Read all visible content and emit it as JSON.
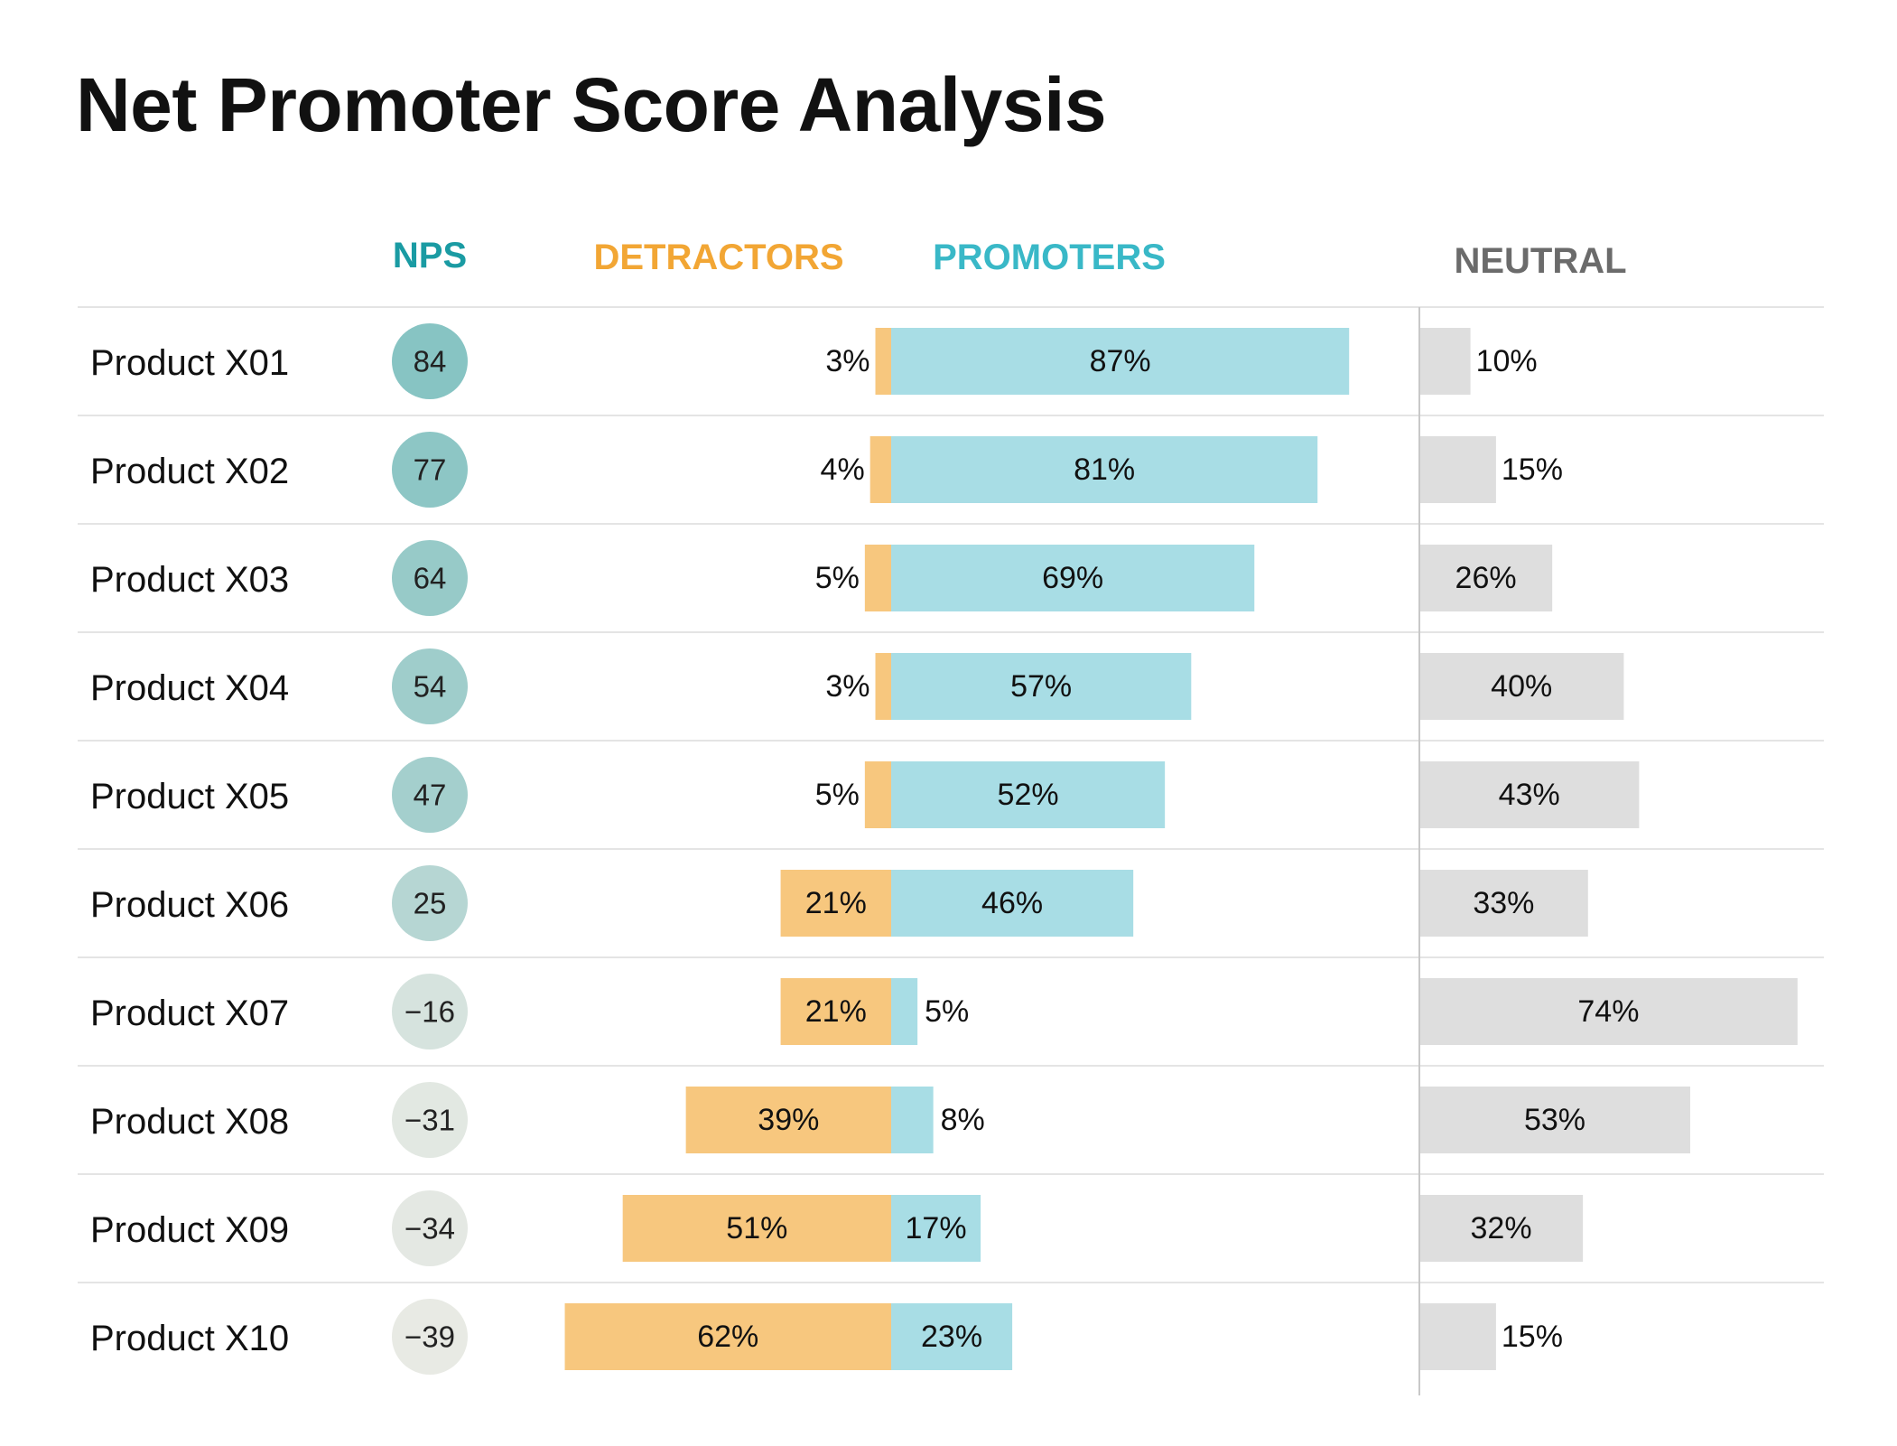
{
  "title": "Net Promoter Score Analysis",
  "colors": {
    "nps_header": "#1a9ba3",
    "detractors": "#f7c77e",
    "detractors_header": "#f2a634",
    "promoters": "#a8dde5",
    "promoters_header": "#39b8c7",
    "neutral": "#dedede",
    "neutral_header": "#6b6b6b",
    "divider": "#e4e4e4"
  },
  "chart_data": {
    "type": "bar",
    "subtype": "diverging-stacked",
    "headers": {
      "nps": "NPS",
      "detractors": "DETRACTORS",
      "promoters": "PROMOTERS",
      "neutral": "NEUTRAL"
    },
    "categories": [
      "Product X01",
      "Product X02",
      "Product X03",
      "Product X04",
      "Product X05",
      "Product X06",
      "Product X07",
      "Product X08",
      "Product X09",
      "Product X10"
    ],
    "nps": [
      84,
      77,
      64,
      54,
      47,
      25,
      -16,
      -31,
      -34,
      -39
    ],
    "nps_labels": [
      "84",
      "77",
      "64",
      "54",
      "47",
      "25",
      "−16",
      "−31",
      "−34",
      "−39"
    ],
    "series": [
      {
        "name": "DETRACTORS",
        "values": [
          3,
          4,
          5,
          3,
          5,
          21,
          21,
          39,
          51,
          62
        ]
      },
      {
        "name": "PROMOTERS",
        "values": [
          87,
          81,
          69,
          57,
          52,
          46,
          5,
          8,
          17,
          23
        ]
      },
      {
        "name": "NEUTRAL",
        "values": [
          10,
          15,
          26,
          40,
          43,
          33,
          74,
          53,
          32,
          15
        ]
      }
    ],
    "unit": "%"
  }
}
